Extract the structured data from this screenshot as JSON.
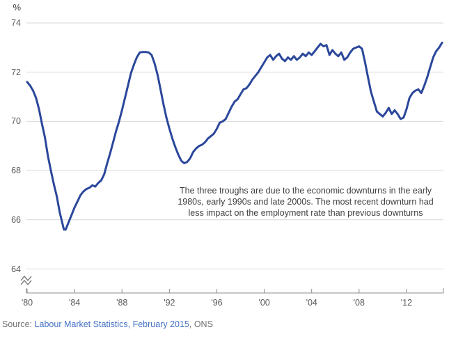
{
  "chart_data": {
    "type": "line",
    "title": "",
    "y_axis": {
      "unit": "%",
      "ticks": [
        74,
        72,
        70,
        68,
        66,
        64
      ],
      "broken_axis": true,
      "displayed_range": [
        64,
        74
      ]
    },
    "x_axis": {
      "tick_labels": [
        "'80",
        "'84",
        "'88",
        "'92",
        "'96",
        "'00",
        "'04",
        "'08",
        "'12"
      ],
      "tick_years": [
        1980,
        1984,
        1988,
        1992,
        1996,
        2000,
        2004,
        2008,
        2012
      ],
      "range": [
        1980,
        2015.1
      ]
    },
    "grid": "horizontal",
    "legend": "none",
    "series": [
      {
        "name": "Employment rate",
        "color": "#2B479B",
        "points": [
          [
            1980.0,
            71.6
          ],
          [
            1980.25,
            71.45
          ],
          [
            1980.5,
            71.25
          ],
          [
            1980.75,
            70.95
          ],
          [
            1981.0,
            70.5
          ],
          [
            1981.25,
            69.9
          ],
          [
            1981.5,
            69.35
          ],
          [
            1981.75,
            68.6
          ],
          [
            1982.0,
            68.0
          ],
          [
            1982.25,
            67.45
          ],
          [
            1982.5,
            66.95
          ],
          [
            1982.75,
            66.3
          ],
          [
            1983.0,
            65.8
          ],
          [
            1983.1,
            65.6
          ],
          [
            1983.25,
            65.6
          ],
          [
            1983.5,
            65.9
          ],
          [
            1983.75,
            66.2
          ],
          [
            1984.0,
            66.5
          ],
          [
            1984.25,
            66.75
          ],
          [
            1984.5,
            67.0
          ],
          [
            1984.75,
            67.15
          ],
          [
            1985.0,
            67.25
          ],
          [
            1985.25,
            67.3
          ],
          [
            1985.5,
            67.4
          ],
          [
            1985.75,
            67.35
          ],
          [
            1986.0,
            67.5
          ],
          [
            1986.25,
            67.6
          ],
          [
            1986.5,
            67.85
          ],
          [
            1986.75,
            68.3
          ],
          [
            1987.0,
            68.7
          ],
          [
            1987.25,
            69.15
          ],
          [
            1987.5,
            69.6
          ],
          [
            1987.75,
            70.0
          ],
          [
            1988.0,
            70.45
          ],
          [
            1988.25,
            70.95
          ],
          [
            1988.5,
            71.45
          ],
          [
            1988.75,
            71.95
          ],
          [
            1989.0,
            72.3
          ],
          [
            1989.25,
            72.6
          ],
          [
            1989.5,
            72.8
          ],
          [
            1989.75,
            72.82
          ],
          [
            1990.0,
            72.82
          ],
          [
            1990.25,
            72.8
          ],
          [
            1990.5,
            72.7
          ],
          [
            1990.75,
            72.35
          ],
          [
            1991.0,
            71.9
          ],
          [
            1991.25,
            71.3
          ],
          [
            1991.5,
            70.7
          ],
          [
            1991.75,
            70.15
          ],
          [
            1992.0,
            69.7
          ],
          [
            1992.25,
            69.3
          ],
          [
            1992.5,
            68.95
          ],
          [
            1992.75,
            68.65
          ],
          [
            1993.0,
            68.4
          ],
          [
            1993.25,
            68.3
          ],
          [
            1993.5,
            68.35
          ],
          [
            1993.75,
            68.5
          ],
          [
            1994.0,
            68.75
          ],
          [
            1994.25,
            68.9
          ],
          [
            1994.5,
            69.0
          ],
          [
            1994.75,
            69.05
          ],
          [
            1995.0,
            69.15
          ],
          [
            1995.25,
            69.3
          ],
          [
            1995.5,
            69.4
          ],
          [
            1995.75,
            69.5
          ],
          [
            1996.0,
            69.7
          ],
          [
            1996.25,
            69.95
          ],
          [
            1996.5,
            70.0
          ],
          [
            1996.75,
            70.1
          ],
          [
            1997.0,
            70.35
          ],
          [
            1997.25,
            70.6
          ],
          [
            1997.5,
            70.8
          ],
          [
            1997.75,
            70.9
          ],
          [
            1998.0,
            71.1
          ],
          [
            1998.25,
            71.3
          ],
          [
            1998.5,
            71.35
          ],
          [
            1998.75,
            71.5
          ],
          [
            1999.0,
            71.7
          ],
          [
            1999.25,
            71.85
          ],
          [
            1999.5,
            72.0
          ],
          [
            1999.75,
            72.2
          ],
          [
            2000.0,
            72.4
          ],
          [
            2000.25,
            72.6
          ],
          [
            2000.5,
            72.7
          ],
          [
            2000.75,
            72.5
          ],
          [
            2001.0,
            72.65
          ],
          [
            2001.25,
            72.75
          ],
          [
            2001.5,
            72.55
          ],
          [
            2001.75,
            72.45
          ],
          [
            2002.0,
            72.6
          ],
          [
            2002.25,
            72.5
          ],
          [
            2002.5,
            72.65
          ],
          [
            2002.75,
            72.5
          ],
          [
            2003.0,
            72.6
          ],
          [
            2003.25,
            72.75
          ],
          [
            2003.5,
            72.65
          ],
          [
            2003.75,
            72.8
          ],
          [
            2004.0,
            72.7
          ],
          [
            2004.25,
            72.85
          ],
          [
            2004.5,
            73.0
          ],
          [
            2004.75,
            73.15
          ],
          [
            2005.0,
            73.05
          ],
          [
            2005.25,
            73.1
          ],
          [
            2005.5,
            72.7
          ],
          [
            2005.75,
            72.9
          ],
          [
            2006.0,
            72.75
          ],
          [
            2006.25,
            72.65
          ],
          [
            2006.5,
            72.8
          ],
          [
            2006.75,
            72.5
          ],
          [
            2007.0,
            72.6
          ],
          [
            2007.25,
            72.8
          ],
          [
            2007.5,
            72.95
          ],
          [
            2007.75,
            73.0
          ],
          [
            2008.0,
            73.05
          ],
          [
            2008.25,
            72.95
          ],
          [
            2008.5,
            72.4
          ],
          [
            2008.75,
            71.8
          ],
          [
            2009.0,
            71.2
          ],
          [
            2009.25,
            70.8
          ],
          [
            2009.5,
            70.4
          ],
          [
            2009.75,
            70.3
          ],
          [
            2010.0,
            70.2
          ],
          [
            2010.25,
            70.35
          ],
          [
            2010.5,
            70.55
          ],
          [
            2010.75,
            70.3
          ],
          [
            2011.0,
            70.45
          ],
          [
            2011.25,
            70.3
          ],
          [
            2011.5,
            70.1
          ],
          [
            2011.75,
            70.15
          ],
          [
            2012.0,
            70.5
          ],
          [
            2012.25,
            70.95
          ],
          [
            2012.5,
            71.15
          ],
          [
            2012.75,
            71.25
          ],
          [
            2013.0,
            71.3
          ],
          [
            2013.25,
            71.15
          ],
          [
            2013.5,
            71.45
          ],
          [
            2013.75,
            71.8
          ],
          [
            2014.0,
            72.2
          ],
          [
            2014.25,
            72.6
          ],
          [
            2014.5,
            72.85
          ],
          [
            2014.75,
            73.0
          ],
          [
            2015.0,
            73.2
          ]
        ]
      }
    ]
  },
  "annotation": {
    "lines": [
      "The three troughs are due to the economic downturns in the early",
      "1980s, early 1990s and late 2000s. The most recent downturn had",
      "less impact on the employment rate than previous downturns"
    ]
  },
  "source": {
    "prefix": "Source: ",
    "link_text": "Labour Market Statistics, February 2015",
    "suffix": ", ONS"
  },
  "colors": {
    "line": "#2B479B",
    "gridline": "#D9D9D9",
    "axis": "#8C8C8C",
    "tick_label": "#595959",
    "annotation_text": "#404040",
    "source_text": "#6E6E6E",
    "source_link": "#4472C4"
  }
}
